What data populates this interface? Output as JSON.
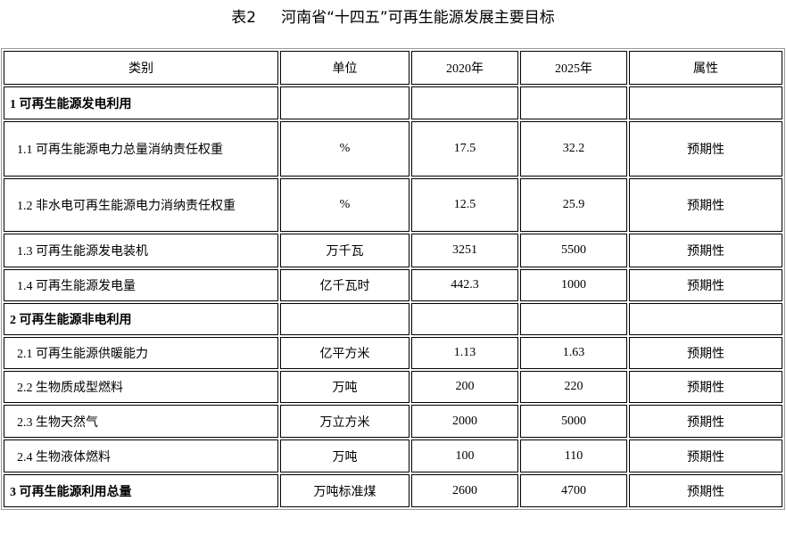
{
  "title": {
    "label": "表2",
    "text": "河南省“十四五”可再生能源发展主要目标"
  },
  "headers": [
    "类别",
    "单位",
    "2020年",
    "2025年",
    "属性"
  ],
  "rows": [
    {
      "type": "section",
      "category": "1  可再生能源发电利用",
      "unit": "",
      "y2020": "",
      "y2025": "",
      "attr": ""
    },
    {
      "type": "item",
      "category": "1.1  可再生能源电力总量消纳责任权重",
      "unit": "%",
      "y2020": "17.5",
      "y2025": "32.2",
      "attr": "预期性"
    },
    {
      "type": "item",
      "category": "1.2  非水电可再生能源电力消纳责任权重",
      "unit": "%",
      "y2020": "12.5",
      "y2025": "25.9",
      "attr": "预期性"
    },
    {
      "type": "item",
      "category": "1.3  可再生能源发电装机",
      "unit": "万千瓦",
      "y2020": "3251",
      "y2025": "5500",
      "attr": "预期性"
    },
    {
      "type": "item",
      "category": "1.4  可再生能源发电量",
      "unit": "亿千瓦时",
      "y2020": "442.3",
      "y2025": "1000",
      "attr": "预期性"
    },
    {
      "type": "section",
      "category": "2  可再生能源非电利用",
      "unit": "",
      "y2020": "",
      "y2025": "",
      "attr": ""
    },
    {
      "type": "item",
      "category": "2.1  可再生能源供暖能力",
      "unit": "亿平方米",
      "y2020": "1.13",
      "y2025": "1.63",
      "attr": "预期性"
    },
    {
      "type": "item",
      "category": "2.2  生物质成型燃料",
      "unit": "万吨",
      "y2020": "200",
      "y2025": "220",
      "attr": "预期性"
    },
    {
      "type": "item",
      "category": "2.3  生物天然气",
      "unit": "万立方米",
      "y2020": "2000",
      "y2025": "5000",
      "attr": "预期性"
    },
    {
      "type": "item",
      "category": "2.4  生物液体燃料",
      "unit": "万吨",
      "y2020": "100",
      "y2025": "110",
      "attr": "预期性"
    },
    {
      "type": "section",
      "category": "3  可再生能源利用总量",
      "unit": "万吨标准煤",
      "y2020": "2600",
      "y2025": "4700",
      "attr": "预期性"
    }
  ]
}
